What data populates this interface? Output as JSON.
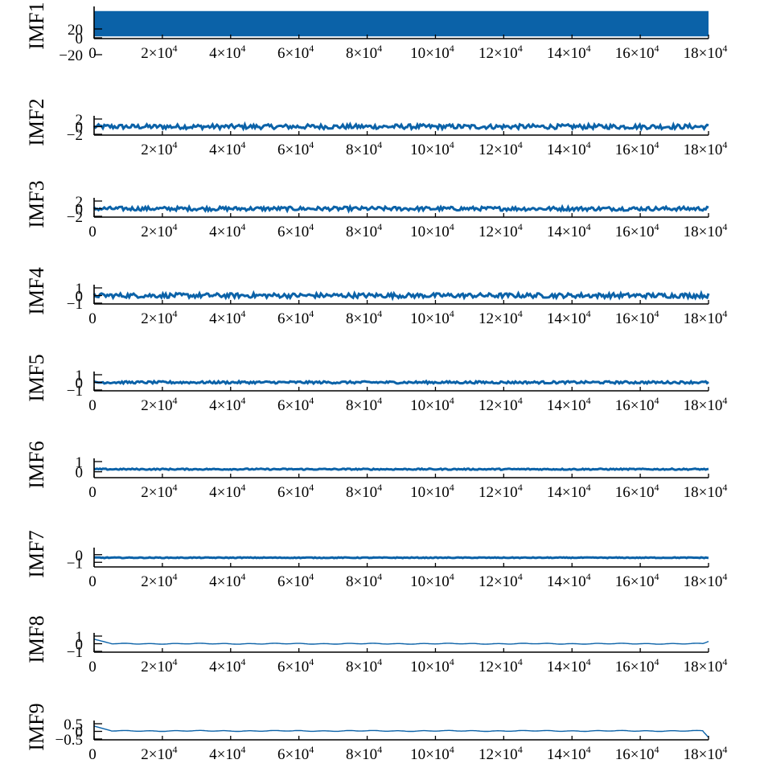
{
  "colors": {
    "series": "#0b62a8",
    "axis": "#000000",
    "background": "#ffffff"
  },
  "chart_data": [
    {
      "type": "line",
      "ylabel": "IMF1",
      "xlim": [
        0,
        180000
      ],
      "ylim": [
        -20,
        20
      ],
      "yticks": [
        "20",
        "0",
        "−20"
      ],
      "xticks": [
        "0",
        "2×10^4",
        "4×10^4",
        "6×10^4",
        "8×10^4",
        "10×10^4",
        "12×10^4",
        "14×10^4",
        "16×10^4",
        "18×10^4"
      ],
      "signal": {
        "mode": "band",
        "center": 0,
        "amp": 18
      }
    },
    {
      "type": "line",
      "ylabel": "IMF2",
      "xlim": [
        0,
        180000
      ],
      "ylim": [
        -2,
        2
      ],
      "yticks": [
        "2",
        "0",
        "−2"
      ],
      "xticks": [
        "2×10^4",
        "4×10^4",
        "6×10^4",
        "8×10^4",
        "10×10^4",
        "12×10^4",
        "14×10^4",
        "16×10^4",
        "18×10^4"
      ],
      "signal": {
        "mode": "noise",
        "center": 0,
        "amp": 0.6
      }
    },
    {
      "type": "line",
      "ylabel": "IMF3",
      "xlim": [
        0,
        180000
      ],
      "ylim": [
        -2,
        2
      ],
      "yticks": [
        "2",
        "0",
        "−2"
      ],
      "xticks": [
        "0",
        "2×10^4",
        "4×10^4",
        "6×10^4",
        "8×10^4",
        "10×10^4",
        "12×10^4",
        "14×10^4",
        "16×10^4",
        "18×10^4"
      ],
      "signal": {
        "mode": "noise",
        "center": 0,
        "amp": 0.5
      }
    },
    {
      "type": "line",
      "ylabel": "IMF4",
      "xlim": [
        0,
        180000
      ],
      "ylim": [
        -1,
        1
      ],
      "yticks": [
        "1",
        "0",
        "−1"
      ],
      "xticks": [
        "0",
        "2×10^4",
        "4×10^4",
        "6×10^4",
        "8×10^4",
        "10×10^4",
        "12×10^4",
        "14×10^4",
        "16×10^4",
        "18×10^4"
      ],
      "signal": {
        "mode": "noise",
        "center": 0,
        "amp": 0.3
      }
    },
    {
      "type": "line",
      "ylabel": "IMF5",
      "xlim": [
        0,
        180000
      ],
      "ylim": [
        -1,
        1
      ],
      "yticks": [
        "1",
        "0",
        "−1"
      ],
      "xticks": [
        "0",
        "2×10^4",
        "4×10^4",
        "6×10^4",
        "8×10^4",
        "10×10^4",
        "12×10^4",
        "14×10^4",
        "16×10^4",
        "18×10^4"
      ],
      "signal": {
        "mode": "noise",
        "center": 0,
        "amp": 0.15
      }
    },
    {
      "type": "line",
      "ylabel": "IMF6",
      "xlim": [
        0,
        180000
      ],
      "ylim": [
        -0.5,
        1
      ],
      "yticks": [
        "1",
        "0"
      ],
      "xticks": [
        "0",
        "2×10^4",
        "4×10^4",
        "6×10^4",
        "8×10^4",
        "10×10^4",
        "12×10^4",
        "14×10^4",
        "16×10^4",
        "18×10^4"
      ],
      "signal": {
        "mode": "noise",
        "center": 0.25,
        "amp": 0.06
      }
    },
    {
      "type": "line",
      "ylabel": "IMF7",
      "xlim": [
        0,
        180000
      ],
      "ylim": [
        -1.5,
        0.5
      ],
      "yticks": [
        "0",
        "−1"
      ],
      "xticks": [
        "0",
        "2×10^4",
        "4×10^4",
        "6×10^4",
        "8×10^4",
        "10×10^4",
        "12×10^4",
        "14×10^4",
        "16×10^4",
        "18×10^4"
      ],
      "signal": {
        "mode": "noise",
        "center": -0.4,
        "amp": 0.05
      }
    },
    {
      "type": "line",
      "ylabel": "IMF8",
      "xlim": [
        0,
        180000
      ],
      "ylim": [
        -1,
        1
      ],
      "yticks": [
        "1",
        "0",
        "−1"
      ],
      "xticks": [
        "0",
        "2×10^4",
        "4×10^4",
        "6×10^4",
        "8×10^4",
        "10×10^4",
        "12×10^4",
        "14×10^4",
        "16×10^4",
        "18×10^4"
      ],
      "signal": {
        "mode": "wave",
        "center": 0,
        "amp": 0.04,
        "start": 0.6,
        "end": 0.3
      }
    },
    {
      "type": "line",
      "ylabel": "IMF9",
      "xlim": [
        0,
        180000
      ],
      "ylim": [
        -0.5,
        0.5
      ],
      "yticks": [
        "0.5",
        "0",
        "−0.5"
      ],
      "xticks": [
        "0",
        "2×10^4",
        "4×10^4",
        "6×10^4",
        "8×10^4",
        "10×10^4",
        "12×10^4",
        "14×10^4",
        "16×10^4",
        "18×10^4"
      ],
      "signal": {
        "mode": "wave",
        "center": 0.03,
        "amp": 0.02,
        "start": 0.35,
        "end": -0.4
      }
    }
  ]
}
